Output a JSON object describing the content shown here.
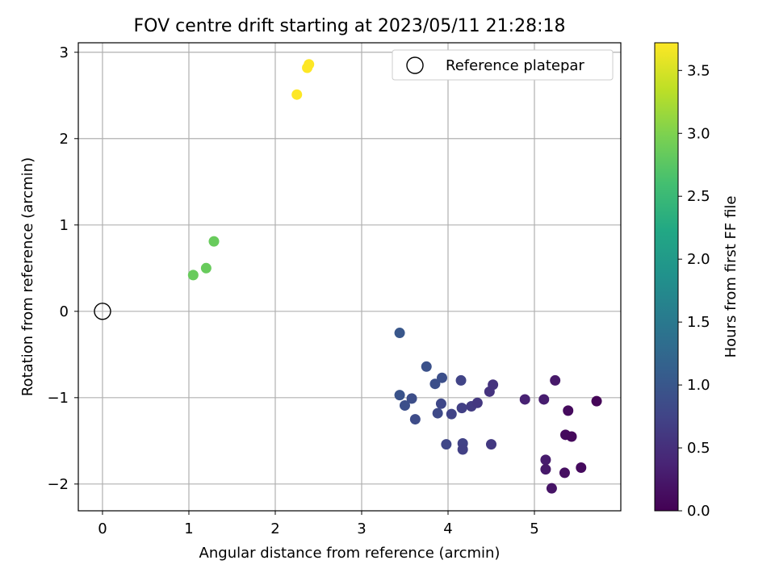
{
  "chart_data": {
    "type": "scatter",
    "title": "FOV centre drift starting at 2023/05/11 21:28:18",
    "xlabel": "Angular distance from reference (arcmin)",
    "ylabel": "Rotation from reference (arcmin)",
    "xlim": [
      -0.28,
      6.0
    ],
    "ylim": [
      -2.31,
      3.11
    ],
    "x_ticks": [
      0,
      1,
      2,
      3,
      4,
      5
    ],
    "y_ticks": [
      -2,
      -1,
      0,
      1,
      2,
      3
    ],
    "grid": true,
    "legend": {
      "placement": "top-right",
      "entries": [
        {
          "label": "Reference platepar",
          "marker": "hollow-circle"
        }
      ]
    },
    "colorbar": {
      "label": "Hours from first FF file",
      "colormap": "viridis",
      "range": [
        0.0,
        3.72
      ],
      "ticks": [
        0.0,
        0.5,
        1.0,
        1.5,
        2.0,
        2.5,
        3.0,
        3.5
      ],
      "tick_labels": [
        "0.0",
        "0.5",
        "1.0",
        "1.5",
        "2.0",
        "2.5",
        "3.0",
        "3.5"
      ]
    },
    "reference_point": {
      "x": 0,
      "y": 0
    },
    "series": [
      {
        "points": [
          {
            "x": 2.25,
            "y": 2.51,
            "c": 3.72
          },
          {
            "x": 2.37,
            "y": 2.82,
            "c": 3.72
          },
          {
            "x": 2.39,
            "y": 2.86,
            "c": 3.72
          },
          {
            "x": 1.05,
            "y": 0.42,
            "c": 2.85
          },
          {
            "x": 1.2,
            "y": 0.5,
            "c": 2.85
          },
          {
            "x": 1.29,
            "y": 0.81,
            "c": 2.85
          },
          {
            "x": 3.44,
            "y": -0.25,
            "c": 1.0
          },
          {
            "x": 3.44,
            "y": -0.97,
            "c": 0.95
          },
          {
            "x": 3.5,
            "y": -1.09,
            "c": 0.9
          },
          {
            "x": 3.58,
            "y": -1.01,
            "c": 0.88
          },
          {
            "x": 3.62,
            "y": -1.25,
            "c": 0.85
          },
          {
            "x": 3.75,
            "y": -0.64,
            "c": 0.92
          },
          {
            "x": 3.85,
            "y": -0.84,
            "c": 0.9
          },
          {
            "x": 3.88,
            "y": -1.18,
            "c": 0.82
          },
          {
            "x": 3.92,
            "y": -1.07,
            "c": 0.8
          },
          {
            "x": 3.93,
            "y": -0.77,
            "c": 0.9
          },
          {
            "x": 3.98,
            "y": -1.54,
            "c": 0.78
          },
          {
            "x": 4.04,
            "y": -1.19,
            "c": 0.75
          },
          {
            "x": 4.15,
            "y": -0.8,
            "c": 0.75
          },
          {
            "x": 4.16,
            "y": -1.12,
            "c": 0.7
          },
          {
            "x": 4.17,
            "y": -1.53,
            "c": 0.72
          },
          {
            "x": 4.17,
            "y": -1.6,
            "c": 0.7
          },
          {
            "x": 4.27,
            "y": -1.1,
            "c": 0.65
          },
          {
            "x": 4.34,
            "y": -1.06,
            "c": 0.6
          },
          {
            "x": 4.48,
            "y": -0.93,
            "c": 0.55
          },
          {
            "x": 4.5,
            "y": -1.54,
            "c": 0.62
          },
          {
            "x": 4.52,
            "y": -0.85,
            "c": 0.55
          },
          {
            "x": 4.89,
            "y": -1.02,
            "c": 0.35
          },
          {
            "x": 5.11,
            "y": -1.02,
            "c": 0.3
          },
          {
            "x": 5.13,
            "y": -1.72,
            "c": 0.28
          },
          {
            "x": 5.13,
            "y": -1.83,
            "c": 0.25
          },
          {
            "x": 5.2,
            "y": -2.05,
            "c": 0.2
          },
          {
            "x": 5.24,
            "y": -0.8,
            "c": 0.25
          },
          {
            "x": 5.35,
            "y": -1.87,
            "c": 0.15
          },
          {
            "x": 5.36,
            "y": -1.43,
            "c": 0.1
          },
          {
            "x": 5.39,
            "y": -1.15,
            "c": 0.1
          },
          {
            "x": 5.43,
            "y": -1.45,
            "c": 0.08
          },
          {
            "x": 5.54,
            "y": -1.81,
            "c": 0.1
          },
          {
            "x": 5.72,
            "y": -1.04,
            "c": 0.05
          }
        ]
      }
    ]
  }
}
